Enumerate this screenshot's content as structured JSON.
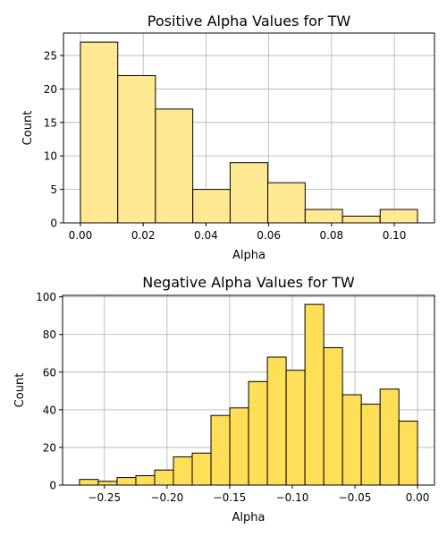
{
  "colors": {
    "positive_fill": "#FFE993",
    "negative_fill": "#FFDF57",
    "edge": "#000000",
    "grid": "#b0b0b0"
  },
  "chart_data": [
    {
      "type": "bar",
      "title": "Positive Alpha Values for TW",
      "xlabel": "Alpha",
      "ylabel": "Count",
      "grid": true,
      "xlim": [
        -0.0054,
        0.1128
      ],
      "ylim": [
        0,
        28.35
      ],
      "x_ticks": [
        0.0,
        0.02,
        0.04,
        0.06,
        0.08,
        0.1
      ],
      "x_tick_labels": [
        "0.00",
        "0.02",
        "0.04",
        "0.06",
        "0.08",
        "0.10"
      ],
      "y_ticks": [
        0,
        5,
        10,
        15,
        20,
        25
      ],
      "y_tick_labels": [
        "0",
        "5",
        "10",
        "15",
        "20",
        "25"
      ],
      "bins": [
        [
          0.0,
          0.0119,
          27
        ],
        [
          0.0119,
          0.0239,
          22
        ],
        [
          0.0239,
          0.0358,
          17
        ],
        [
          0.0358,
          0.0477,
          5
        ],
        [
          0.0477,
          0.0597,
          9
        ],
        [
          0.0597,
          0.0716,
          6
        ],
        [
          0.0716,
          0.0835,
          2
        ],
        [
          0.0835,
          0.0955,
          1
        ],
        [
          0.0955,
          0.1074,
          2
        ]
      ]
    },
    {
      "type": "bar",
      "title": "Negative Alpha Values for TW",
      "xlabel": "Alpha",
      "ylabel": "Count",
      "grid": true,
      "xlim": [
        -0.2834,
        0.0135
      ],
      "ylim": [
        0,
        100.8
      ],
      "x_ticks": [
        -0.25,
        -0.2,
        -0.15,
        -0.1,
        -0.05,
        0.0
      ],
      "x_tick_labels": [
        "−0.25",
        "−0.20",
        "−0.15",
        "−0.10",
        "−0.05",
        "0.00"
      ],
      "y_ticks": [
        0,
        20,
        40,
        60,
        80,
        100
      ],
      "y_tick_labels": [
        "0",
        "20",
        "40",
        "60",
        "80",
        "100"
      ],
      "bins": [
        [
          -0.2699,
          -0.2549,
          3
        ],
        [
          -0.2549,
          -0.2399,
          2
        ],
        [
          -0.2399,
          -0.2249,
          4
        ],
        [
          -0.2249,
          -0.2099,
          5
        ],
        [
          -0.2099,
          -0.1949,
          8
        ],
        [
          -0.1949,
          -0.1799,
          15
        ],
        [
          -0.1799,
          -0.1649,
          17
        ],
        [
          -0.1649,
          -0.1499,
          37
        ],
        [
          -0.1499,
          -0.1349,
          41
        ],
        [
          -0.1349,
          -0.1199,
          55
        ],
        [
          -0.1199,
          -0.1049,
          68
        ],
        [
          -0.1049,
          -0.0899,
          61
        ],
        [
          -0.0899,
          -0.0749,
          96
        ],
        [
          -0.0749,
          -0.0599,
          73
        ],
        [
          -0.0599,
          -0.0449,
          48
        ],
        [
          -0.0449,
          -0.0299,
          43
        ],
        [
          -0.0299,
          -0.0149,
          51
        ],
        [
          -0.0149,
          0.0,
          34
        ]
      ]
    }
  ]
}
